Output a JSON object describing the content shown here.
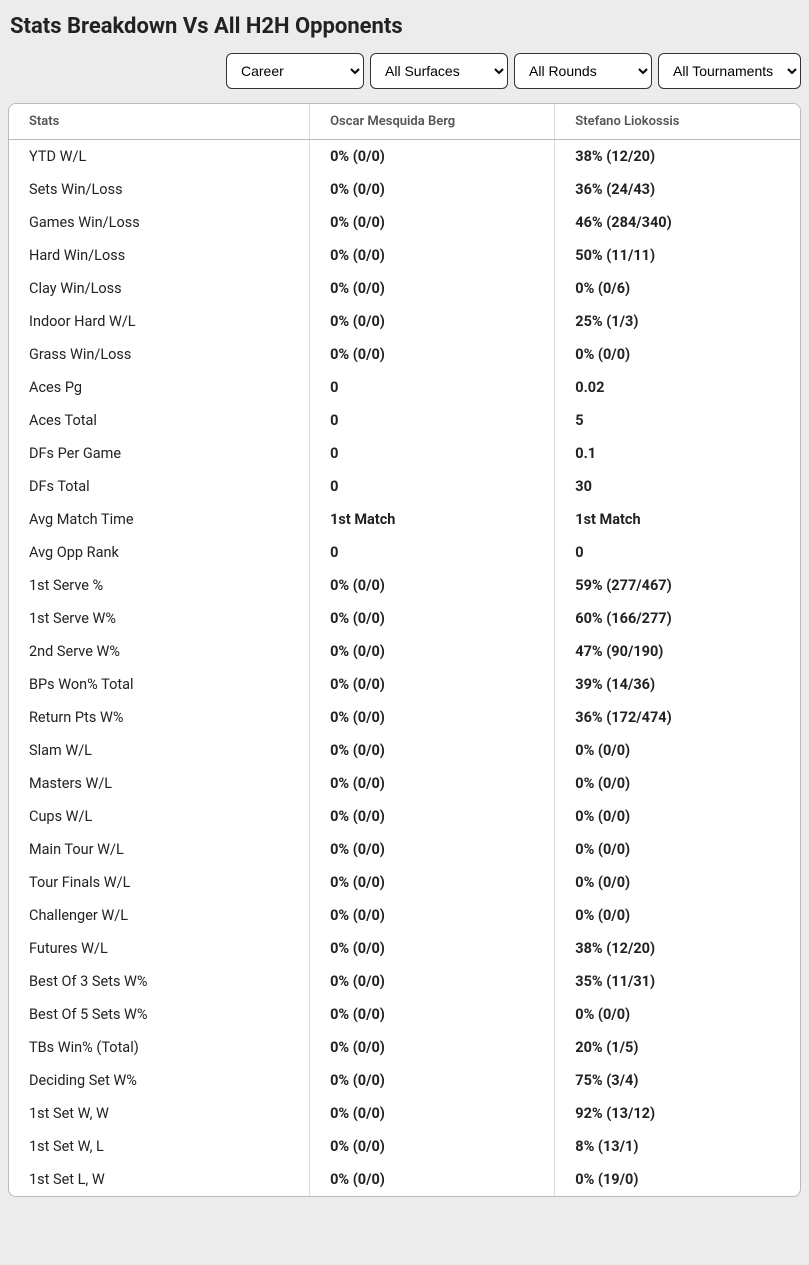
{
  "title": "Stats Breakdown Vs All H2H Opponents",
  "filters": {
    "career": "Career",
    "surfaces": "All Surfaces",
    "rounds": "All Rounds",
    "tournaments": "All Tournaments"
  },
  "columns": {
    "stats": "Stats",
    "player1": "Oscar Mesquida Berg",
    "player2": "Stefano Liokossis"
  },
  "rows": [
    {
      "stat": "YTD W/L",
      "p1": "0% (0/0)",
      "p2": "38% (12/20)"
    },
    {
      "stat": "Sets Win/Loss",
      "p1": "0% (0/0)",
      "p2": "36% (24/43)"
    },
    {
      "stat": "Games Win/Loss",
      "p1": "0% (0/0)",
      "p2": "46% (284/340)"
    },
    {
      "stat": "Hard Win/Loss",
      "p1": "0% (0/0)",
      "p2": "50% (11/11)"
    },
    {
      "stat": "Clay Win/Loss",
      "p1": "0% (0/0)",
      "p2": "0% (0/6)"
    },
    {
      "stat": "Indoor Hard W/L",
      "p1": "0% (0/0)",
      "p2": "25% (1/3)"
    },
    {
      "stat": "Grass Win/Loss",
      "p1": "0% (0/0)",
      "p2": "0% (0/0)"
    },
    {
      "stat": "Aces Pg",
      "p1": "0",
      "p2": "0.02"
    },
    {
      "stat": "Aces Total",
      "p1": "0",
      "p2": "5"
    },
    {
      "stat": "DFs Per Game",
      "p1": "0",
      "p2": "0.1"
    },
    {
      "stat": "DFs Total",
      "p1": "0",
      "p2": "30"
    },
    {
      "stat": "Avg Match Time",
      "p1": "1st Match",
      "p2": "1st Match"
    },
    {
      "stat": "Avg Opp Rank",
      "p1": "0",
      "p2": "0"
    },
    {
      "stat": "1st Serve %",
      "p1": "0% (0/0)",
      "p2": "59% (277/467)"
    },
    {
      "stat": "1st Serve W%",
      "p1": "0% (0/0)",
      "p2": "60% (166/277)"
    },
    {
      "stat": "2nd Serve W%",
      "p1": "0% (0/0)",
      "p2": "47% (90/190)"
    },
    {
      "stat": "BPs Won% Total",
      "p1": "0% (0/0)",
      "p2": "39% (14/36)"
    },
    {
      "stat": "Return Pts W%",
      "p1": "0% (0/0)",
      "p2": "36% (172/474)"
    },
    {
      "stat": "Slam W/L",
      "p1": "0% (0/0)",
      "p2": "0% (0/0)"
    },
    {
      "stat": "Masters W/L",
      "p1": "0% (0/0)",
      "p2": "0% (0/0)"
    },
    {
      "stat": "Cups W/L",
      "p1": "0% (0/0)",
      "p2": "0% (0/0)"
    },
    {
      "stat": "Main Tour W/L",
      "p1": "0% (0/0)",
      "p2": "0% (0/0)"
    },
    {
      "stat": "Tour Finals W/L",
      "p1": "0% (0/0)",
      "p2": "0% (0/0)"
    },
    {
      "stat": "Challenger W/L",
      "p1": "0% (0/0)",
      "p2": "0% (0/0)"
    },
    {
      "stat": "Futures W/L",
      "p1": "0% (0/0)",
      "p2": "38% (12/20)"
    },
    {
      "stat": "Best Of 3 Sets W%",
      "p1": "0% (0/0)",
      "p2": "35% (11/31)"
    },
    {
      "stat": "Best Of 5 Sets W%",
      "p1": "0% (0/0)",
      "p2": "0% (0/0)"
    },
    {
      "stat": "TBs Win% (Total)",
      "p1": "0% (0/0)",
      "p2": "20% (1/5)"
    },
    {
      "stat": "Deciding Set W%",
      "p1": "0% (0/0)",
      "p2": "75% (3/4)"
    },
    {
      "stat": "1st Set W, W",
      "p1": "0% (0/0)",
      "p2": "92% (13/12)"
    },
    {
      "stat": "1st Set W, L",
      "p1": "0% (0/0)",
      "p2": "8% (13/1)"
    },
    {
      "stat": "1st Set L, W",
      "p1": "0% (0/0)",
      "p2": "0% (19/0)"
    }
  ]
}
